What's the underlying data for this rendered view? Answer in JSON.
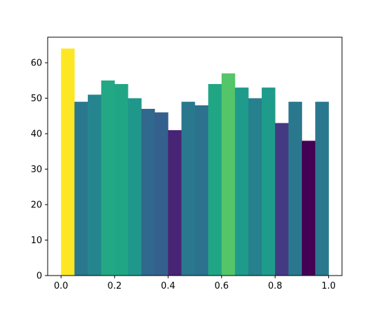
{
  "chart_data": {
    "type": "bar",
    "title": "",
    "xlabel": "",
    "ylabel": "",
    "bin_edges": [
      0.0,
      0.05,
      0.1,
      0.15,
      0.2,
      0.25,
      0.3,
      0.35,
      0.4,
      0.45,
      0.5,
      0.55,
      0.6,
      0.65,
      0.7,
      0.75,
      0.8,
      0.85,
      0.9,
      0.95,
      1.0
    ],
    "values": [
      64,
      49,
      51,
      55,
      54,
      50,
      47,
      46,
      41,
      49,
      48,
      54,
      57,
      53,
      50,
      53,
      43,
      49,
      38,
      49
    ],
    "colors": [
      "#fde725",
      "#2a788e",
      "#25858e",
      "#22a884",
      "#21a685",
      "#1f988b",
      "#31688e",
      "#355f8d",
      "#482475",
      "#2a788e",
      "#2c718e",
      "#21a685",
      "#54c568",
      "#1e9b8a",
      "#27808e",
      "#1e9b8a",
      "#443983",
      "#2a788e",
      "#440154",
      "#2a788e"
    ],
    "xlim": [
      -0.05,
      1.05
    ],
    "ylim": [
      0,
      67.2
    ],
    "xticks": [
      0.0,
      0.2,
      0.4,
      0.6,
      0.8,
      1.0
    ],
    "xtick_labels": [
      "0.0",
      "0.2",
      "0.4",
      "0.6",
      "0.8",
      "1.0"
    ],
    "yticks": [
      0,
      10,
      20,
      30,
      40,
      50,
      60
    ],
    "ytick_labels": [
      "0",
      "10",
      "20",
      "30",
      "40",
      "50",
      "60"
    ],
    "grid": false,
    "legend": "none"
  }
}
